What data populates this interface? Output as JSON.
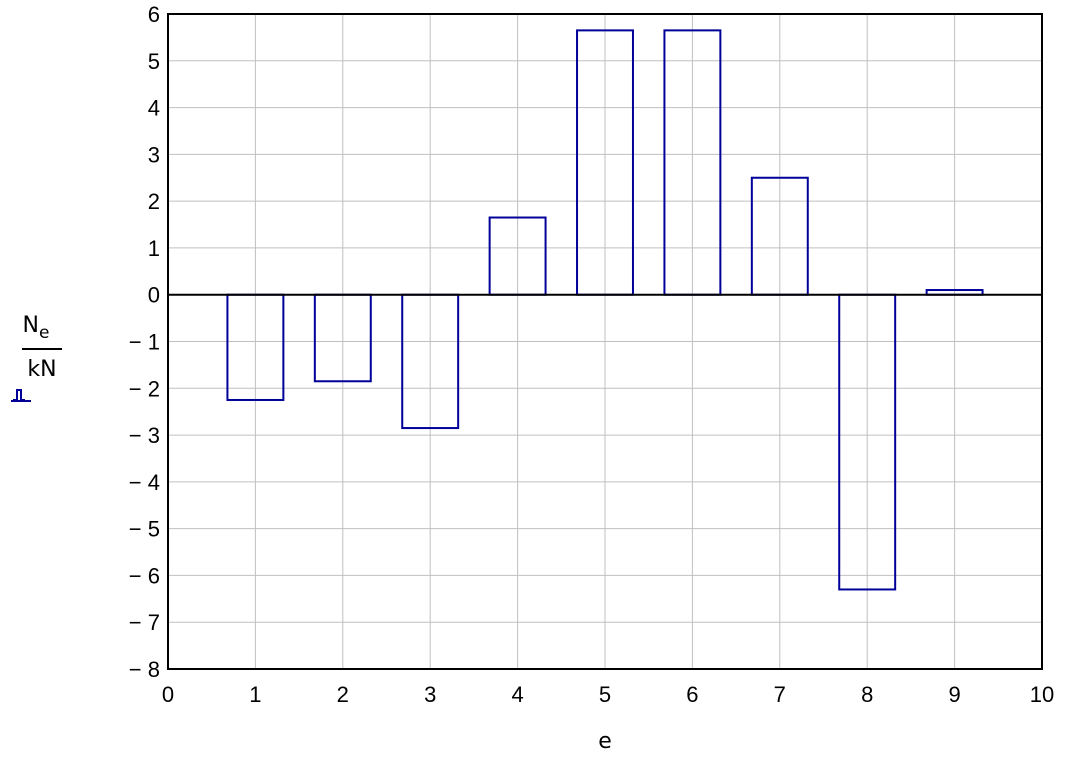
{
  "chart_data": {
    "type": "bar",
    "title": "",
    "xlabel": "e",
    "ylabel": {
      "numerator": "N",
      "numerator_subscript": "e",
      "denominator": "kN"
    },
    "x": [
      1,
      2,
      3,
      4,
      5,
      6,
      7,
      8,
      9
    ],
    "values": [
      -2.25,
      -1.85,
      -2.85,
      1.65,
      5.65,
      5.65,
      2.5,
      -6.3,
      0.1
    ],
    "xlim": [
      0,
      10
    ],
    "ylim": [
      -8,
      6
    ],
    "xticks": [
      "0",
      "1",
      "2",
      "3",
      "4",
      "5",
      "6",
      "7",
      "8",
      "9",
      "10"
    ],
    "yticks": [
      "6",
      "5",
      "4",
      "3",
      "2",
      "1",
      "0",
      "− 1",
      "− 2",
      "− 3",
      "− 4",
      "− 5",
      "− 6",
      "− 7",
      "− 8"
    ],
    "grid": true,
    "bar_color": "#000099",
    "grid_color": "#c0c0c0",
    "legend_symbol_color": "#000099"
  }
}
